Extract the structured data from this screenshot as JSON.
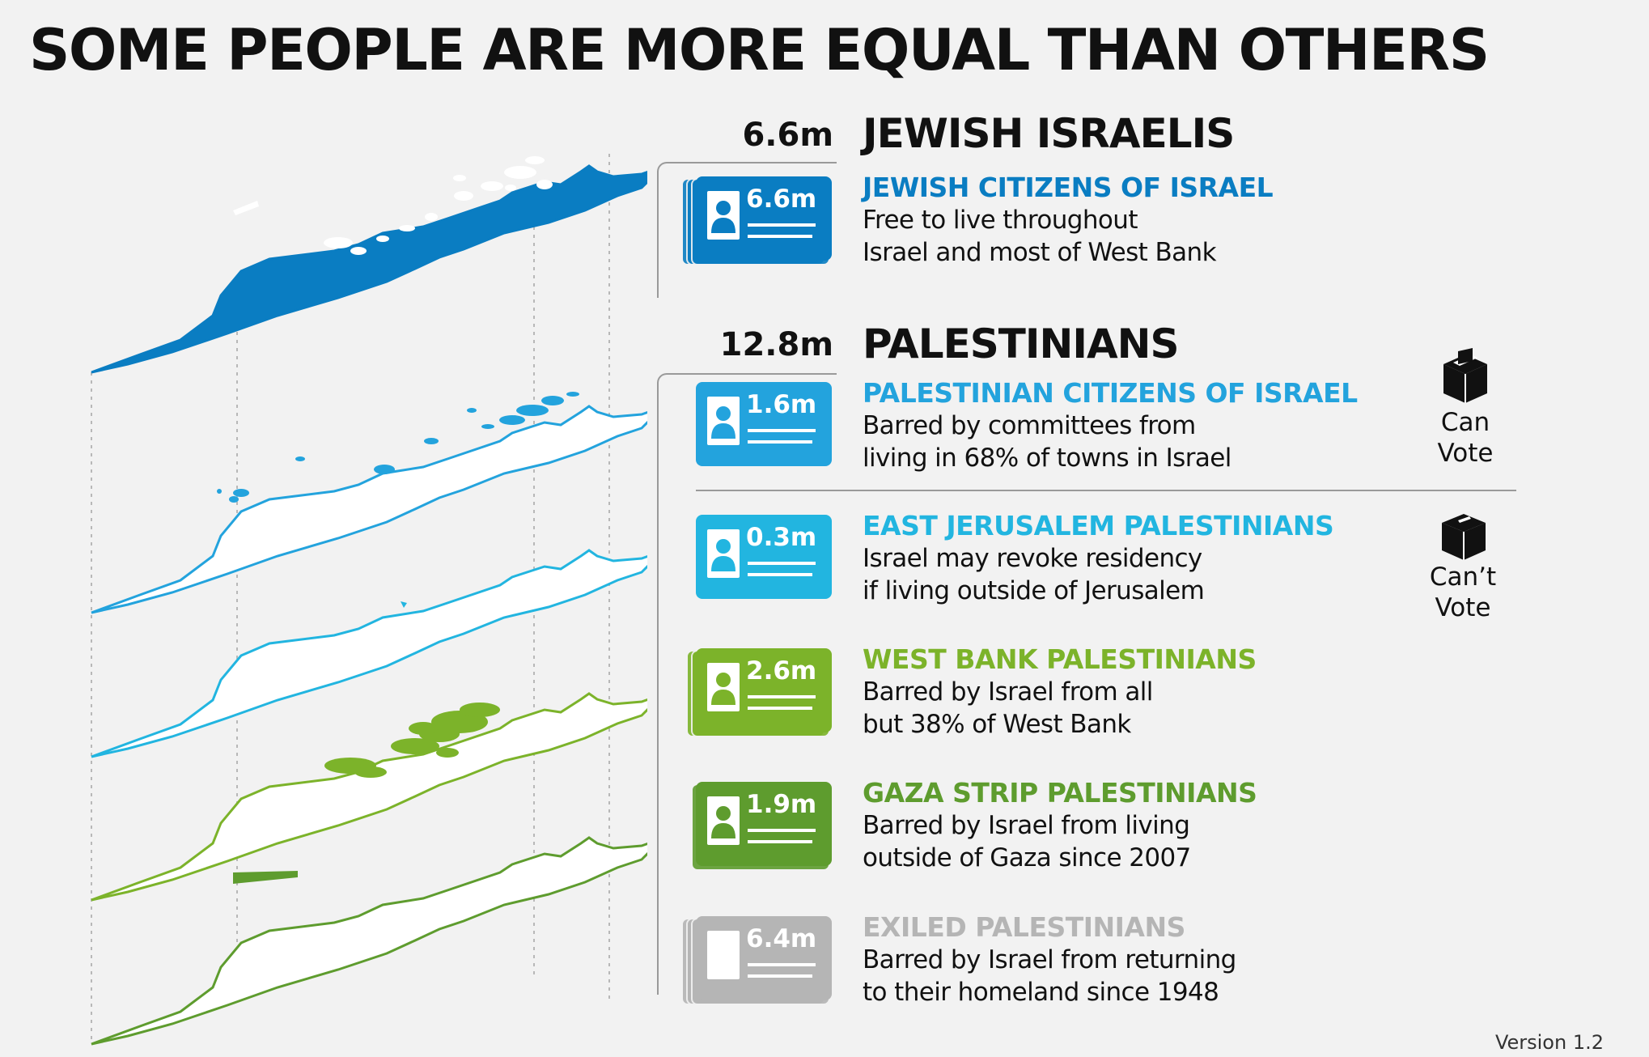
{
  "title": "SOME PEOPLE ARE MORE EQUAL THAN OTHERS",
  "version": "Version 1.2",
  "colors": {
    "jewish": "#0a7dc2",
    "pal_citizens": "#23a3dd",
    "east_jerusalem": "#22b5e0",
    "west_bank": "#7cb32a",
    "gaza": "#5e9c2e",
    "exiled": "#b5b5b5"
  },
  "groups": [
    {
      "value": "6.6m",
      "title": "JEWISH ISRAELIS"
    },
    {
      "value": "12.8m",
      "title": "PALESTINIANS"
    }
  ],
  "categories": [
    {
      "value": "6.6m",
      "title": "JEWISH CITIZENS OF ISRAEL",
      "desc": [
        "Free to live throughout",
        "Israel and most of West Bank"
      ],
      "color": "#0a7dc2"
    },
    {
      "value": "1.6m",
      "title": "PALESTINIAN CITIZENS OF ISRAEL",
      "desc": [
        "Barred by committees from",
        "living in 68% of towns in Israel"
      ],
      "color": "#23a3dd"
    },
    {
      "value": "0.3m",
      "title": "EAST JERUSALEM PALESTINIANS",
      "desc": [
        "Israel may revoke residency",
        "if living outside of Jerusalem"
      ],
      "color": "#22b5e0"
    },
    {
      "value": "2.6m",
      "title": "WEST BANK PALESTINIANS",
      "desc": [
        "Barred by Israel from all",
        "but 38% of West Bank"
      ],
      "color": "#7cb32a"
    },
    {
      "value": "1.9m",
      "title": "GAZA STRIP PALESTINIANS",
      "desc": [
        "Barred by Israel from living",
        "outside of Gaza since 2007"
      ],
      "color": "#5e9c2e"
    },
    {
      "value": "6.4m",
      "title": "EXILED PALESTINIANS",
      "desc": [
        "Barred by Israel from returning",
        "to their homeland since 1948"
      ],
      "color": "#b5b5b5"
    }
  ],
  "vote": [
    {
      "icon": "ballot-box-icon",
      "label": [
        "Can",
        "Vote"
      ]
    },
    {
      "icon": "ballot-box-icon",
      "label": [
        "Can’t",
        "Vote"
      ]
    }
  ]
}
